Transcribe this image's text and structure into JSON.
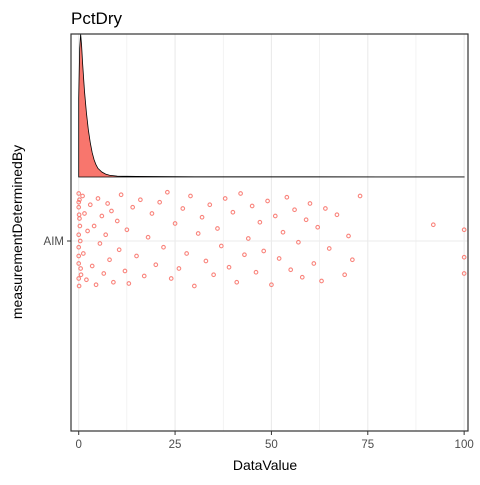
{
  "chart_data": {
    "type": "scatter",
    "subtype": "raincloud (density + jittered points)",
    "title": "PctDry",
    "xlabel": "DataValue",
    "ylabel": "measurementDeterminedBy",
    "xlim": [
      -2,
      101
    ],
    "x_ticks": [
      0,
      25,
      50,
      75,
      100
    ],
    "x_tick_labels": [
      "0",
      "25",
      "50",
      "75",
      "100"
    ],
    "categories": [
      "AIM"
    ],
    "grid": true,
    "legend": "none",
    "colors": {
      "points": "#F8766D",
      "density_fill": "#F8766D",
      "density_outline": "#000000",
      "grid": "#EBEBEB",
      "panel_border": "#333333"
    },
    "density": {
      "x": [
        0,
        0.25,
        0.5,
        0.75,
        1,
        1.5,
        2,
        2.5,
        3,
        3.5,
        4,
        4.5,
        5,
        6,
        7,
        8,
        10,
        15,
        20,
        30,
        40,
        60,
        80,
        100
      ],
      "y": [
        0.55,
        0.9,
        1.0,
        0.92,
        0.8,
        0.6,
        0.45,
        0.33,
        0.24,
        0.17,
        0.12,
        0.085,
        0.06,
        0.035,
        0.02,
        0.012,
        0.006,
        0.004,
        0.003,
        0.002,
        0.0015,
        0.0012,
        0.001,
        0.001
      ]
    },
    "points": [
      {
        "x": 0.0,
        "y": 0.05
      },
      {
        "x": 0.0,
        "y": -0.18
      },
      {
        "x": 0.1,
        "y": 0.21
      },
      {
        "x": 0.0,
        "y": -0.3
      },
      {
        "x": 0.2,
        "y": 0.33
      },
      {
        "x": 0.0,
        "y": -0.05
      },
      {
        "x": 0.3,
        "y": 0.12
      },
      {
        "x": 0.0,
        "y": 0.27
      },
      {
        "x": 0.5,
        "y": -0.22
      },
      {
        "x": 0.0,
        "y": 0.38
      },
      {
        "x": 0.1,
        "y": -0.36
      },
      {
        "x": 0.4,
        "y": 0.0
      },
      {
        "x": 0.0,
        "y": -0.12
      },
      {
        "x": 0.2,
        "y": 0.18
      },
      {
        "x": 0.6,
        "y": -0.27
      },
      {
        "x": 0.0,
        "y": 0.31
      },
      {
        "x": 1.0,
        "y": 0.36
      },
      {
        "x": 1.2,
        "y": -0.1
      },
      {
        "x": 1.5,
        "y": 0.22
      },
      {
        "x": 2.0,
        "y": -0.31
      },
      {
        "x": 2.3,
        "y": 0.08
      },
      {
        "x": 3.0,
        "y": 0.29
      },
      {
        "x": 3.5,
        "y": -0.2
      },
      {
        "x": 4.0,
        "y": 0.12
      },
      {
        "x": 4.5,
        "y": -0.35
      },
      {
        "x": 5.0,
        "y": 0.34
      },
      {
        "x": 5.5,
        "y": -0.02
      },
      {
        "x": 6.0,
        "y": 0.2
      },
      {
        "x": 6.5,
        "y": -0.26
      },
      {
        "x": 7.0,
        "y": 0.05
      },
      {
        "x": 7.5,
        "y": 0.3
      },
      {
        "x": 8.0,
        "y": -0.15
      },
      {
        "x": 8.5,
        "y": 0.24
      },
      {
        "x": 9.0,
        "y": -0.33
      },
      {
        "x": 10.0,
        "y": 0.16
      },
      {
        "x": 10.5,
        "y": -0.07
      },
      {
        "x": 11.0,
        "y": 0.37
      },
      {
        "x": 12.0,
        "y": -0.24
      },
      {
        "x": 12.5,
        "y": 0.09
      },
      {
        "x": 13.0,
        "y": -0.34
      },
      {
        "x": 14.0,
        "y": 0.27
      },
      {
        "x": 15.0,
        "y": -0.12
      },
      {
        "x": 16.0,
        "y": 0.33
      },
      {
        "x": 17.0,
        "y": -0.28
      },
      {
        "x": 18.0,
        "y": 0.03
      },
      {
        "x": 19.0,
        "y": 0.22
      },
      {
        "x": 20.0,
        "y": -0.19
      },
      {
        "x": 21.0,
        "y": 0.31
      },
      {
        "x": 22.0,
        "y": -0.05
      },
      {
        "x": 23.0,
        "y": 0.39
      },
      {
        "x": 24.0,
        "y": -0.3
      },
      {
        "x": 25.0,
        "y": 0.14
      },
      {
        "x": 26.0,
        "y": -0.22
      },
      {
        "x": 27.0,
        "y": 0.26
      },
      {
        "x": 28.0,
        "y": -0.1
      },
      {
        "x": 29.0,
        "y": 0.36
      },
      {
        "x": 30.0,
        "y": -0.36
      },
      {
        "x": 31.0,
        "y": 0.06
      },
      {
        "x": 32.0,
        "y": 0.19
      },
      {
        "x": 33.0,
        "y": -0.16
      },
      {
        "x": 34.0,
        "y": 0.29
      },
      {
        "x": 35.0,
        "y": -0.27
      },
      {
        "x": 36.0,
        "y": 0.1
      },
      {
        "x": 37.0,
        "y": -0.04
      },
      {
        "x": 38.0,
        "y": 0.34
      },
      {
        "x": 39.0,
        "y": -0.21
      },
      {
        "x": 40.0,
        "y": 0.23
      },
      {
        "x": 41.0,
        "y": -0.33
      },
      {
        "x": 42.0,
        "y": 0.38
      },
      {
        "x": 43.0,
        "y": -0.11
      },
      {
        "x": 44.0,
        "y": 0.02
      },
      {
        "x": 45.0,
        "y": 0.28
      },
      {
        "x": 46.0,
        "y": -0.25
      },
      {
        "x": 47.0,
        "y": 0.15
      },
      {
        "x": 48.0,
        "y": -0.08
      },
      {
        "x": 49.0,
        "y": 0.32
      },
      {
        "x": 50.0,
        "y": -0.35
      },
      {
        "x": 51.0,
        "y": 0.2
      },
      {
        "x": 52.0,
        "y": -0.14
      },
      {
        "x": 53.0,
        "y": 0.07
      },
      {
        "x": 54.0,
        "y": 0.35
      },
      {
        "x": 55.0,
        "y": -0.23
      },
      {
        "x": 56.0,
        "y": 0.25
      },
      {
        "x": 57.0,
        "y": -0.01
      },
      {
        "x": 58.0,
        "y": -0.29
      },
      {
        "x": 59.0,
        "y": 0.17
      },
      {
        "x": 60.0,
        "y": 0.3
      },
      {
        "x": 61.0,
        "y": -0.18
      },
      {
        "x": 62.0,
        "y": 0.11
      },
      {
        "x": 63.0,
        "y": -0.32
      },
      {
        "x": 64.0,
        "y": 0.26
      },
      {
        "x": 65.0,
        "y": -0.06
      },
      {
        "x": 67.0,
        "y": 0.21
      },
      {
        "x": 69.0,
        "y": -0.27
      },
      {
        "x": 70.0,
        "y": 0.04
      },
      {
        "x": 71.0,
        "y": -0.15
      },
      {
        "x": 73.0,
        "y": 0.36
      },
      {
        "x": 92.0,
        "y": 0.13
      },
      {
        "x": 100.0,
        "y": 0.09
      },
      {
        "x": 100.0,
        "y": -0.13
      },
      {
        "x": 100.0,
        "y": -0.26
      }
    ]
  }
}
